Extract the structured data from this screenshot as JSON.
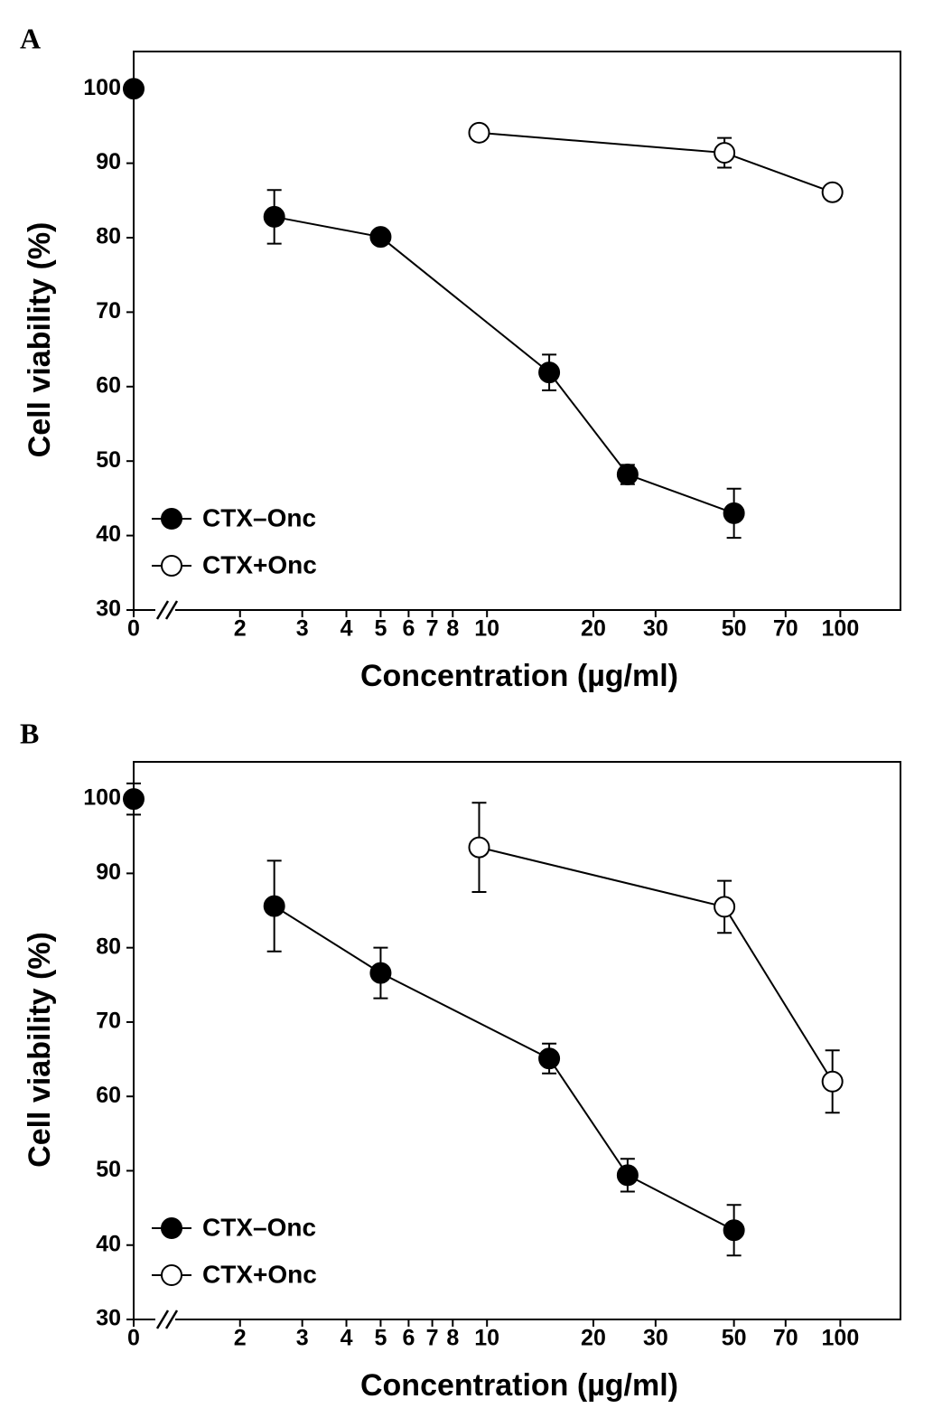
{
  "chart_data": [
    {
      "type": "line",
      "label": "A",
      "xlabel": "Concentration (µg/ml)",
      "ylabel": "Cell viability (%)",
      "xscale": "log",
      "axis_break": true,
      "legend": "lower left",
      "xlim": [
        1,
        148
      ],
      "xticks": [
        0,
        2,
        3,
        4,
        5,
        6,
        7,
        8,
        10,
        20,
        30,
        50,
        70,
        100
      ],
      "ylim": [
        30,
        105
      ],
      "yticks": [
        30,
        40,
        50,
        60,
        70,
        80,
        90,
        100
      ],
      "series": [
        {
          "name": "CTX–Onc",
          "color": "#000000",
          "x": [
            0,
            2.5,
            5,
            15,
            25,
            50
          ],
          "values": [
            100,
            82.8,
            80.1,
            61.9,
            48.2,
            43
          ],
          "errors": [
            null,
            3.6,
            null,
            2.4,
            1.3,
            3.3
          ]
        },
        {
          "name": "CTX+Onc",
          "color": "#ffffff",
          "x": [
            9.5,
            47,
            95
          ],
          "values": [
            94.1,
            91.4,
            86.1
          ],
          "errors": [
            null,
            2,
            null
          ]
        }
      ]
    },
    {
      "type": "line",
      "label": "B",
      "xlabel": "Concentration (µg/ml)",
      "ylabel": "Cell viability (%)",
      "xscale": "log",
      "axis_break": true,
      "legend": "lower left",
      "xlim": [
        1,
        148
      ],
      "xticks": [
        0,
        2,
        3,
        4,
        5,
        6,
        7,
        8,
        10,
        20,
        30,
        50,
        70,
        100
      ],
      "ylim": [
        30,
        105
      ],
      "yticks": [
        30,
        40,
        50,
        60,
        70,
        80,
        90,
        100
      ],
      "series": [
        {
          "name": "CTX–Onc",
          "color": "#000000",
          "x": [
            0,
            2.5,
            5,
            15,
            25,
            50
          ],
          "values": [
            100,
            85.6,
            76.6,
            65.1,
            49.4,
            42
          ],
          "errors": [
            2.1,
            6.1,
            3.4,
            2,
            2.2,
            3.4
          ]
        },
        {
          "name": "CTX+Onc",
          "color": "#ffffff",
          "x": [
            9.5,
            47,
            95
          ],
          "values": [
            93.5,
            85.5,
            62
          ],
          "errors": [
            6,
            3.5,
            4.2
          ]
        }
      ]
    }
  ]
}
